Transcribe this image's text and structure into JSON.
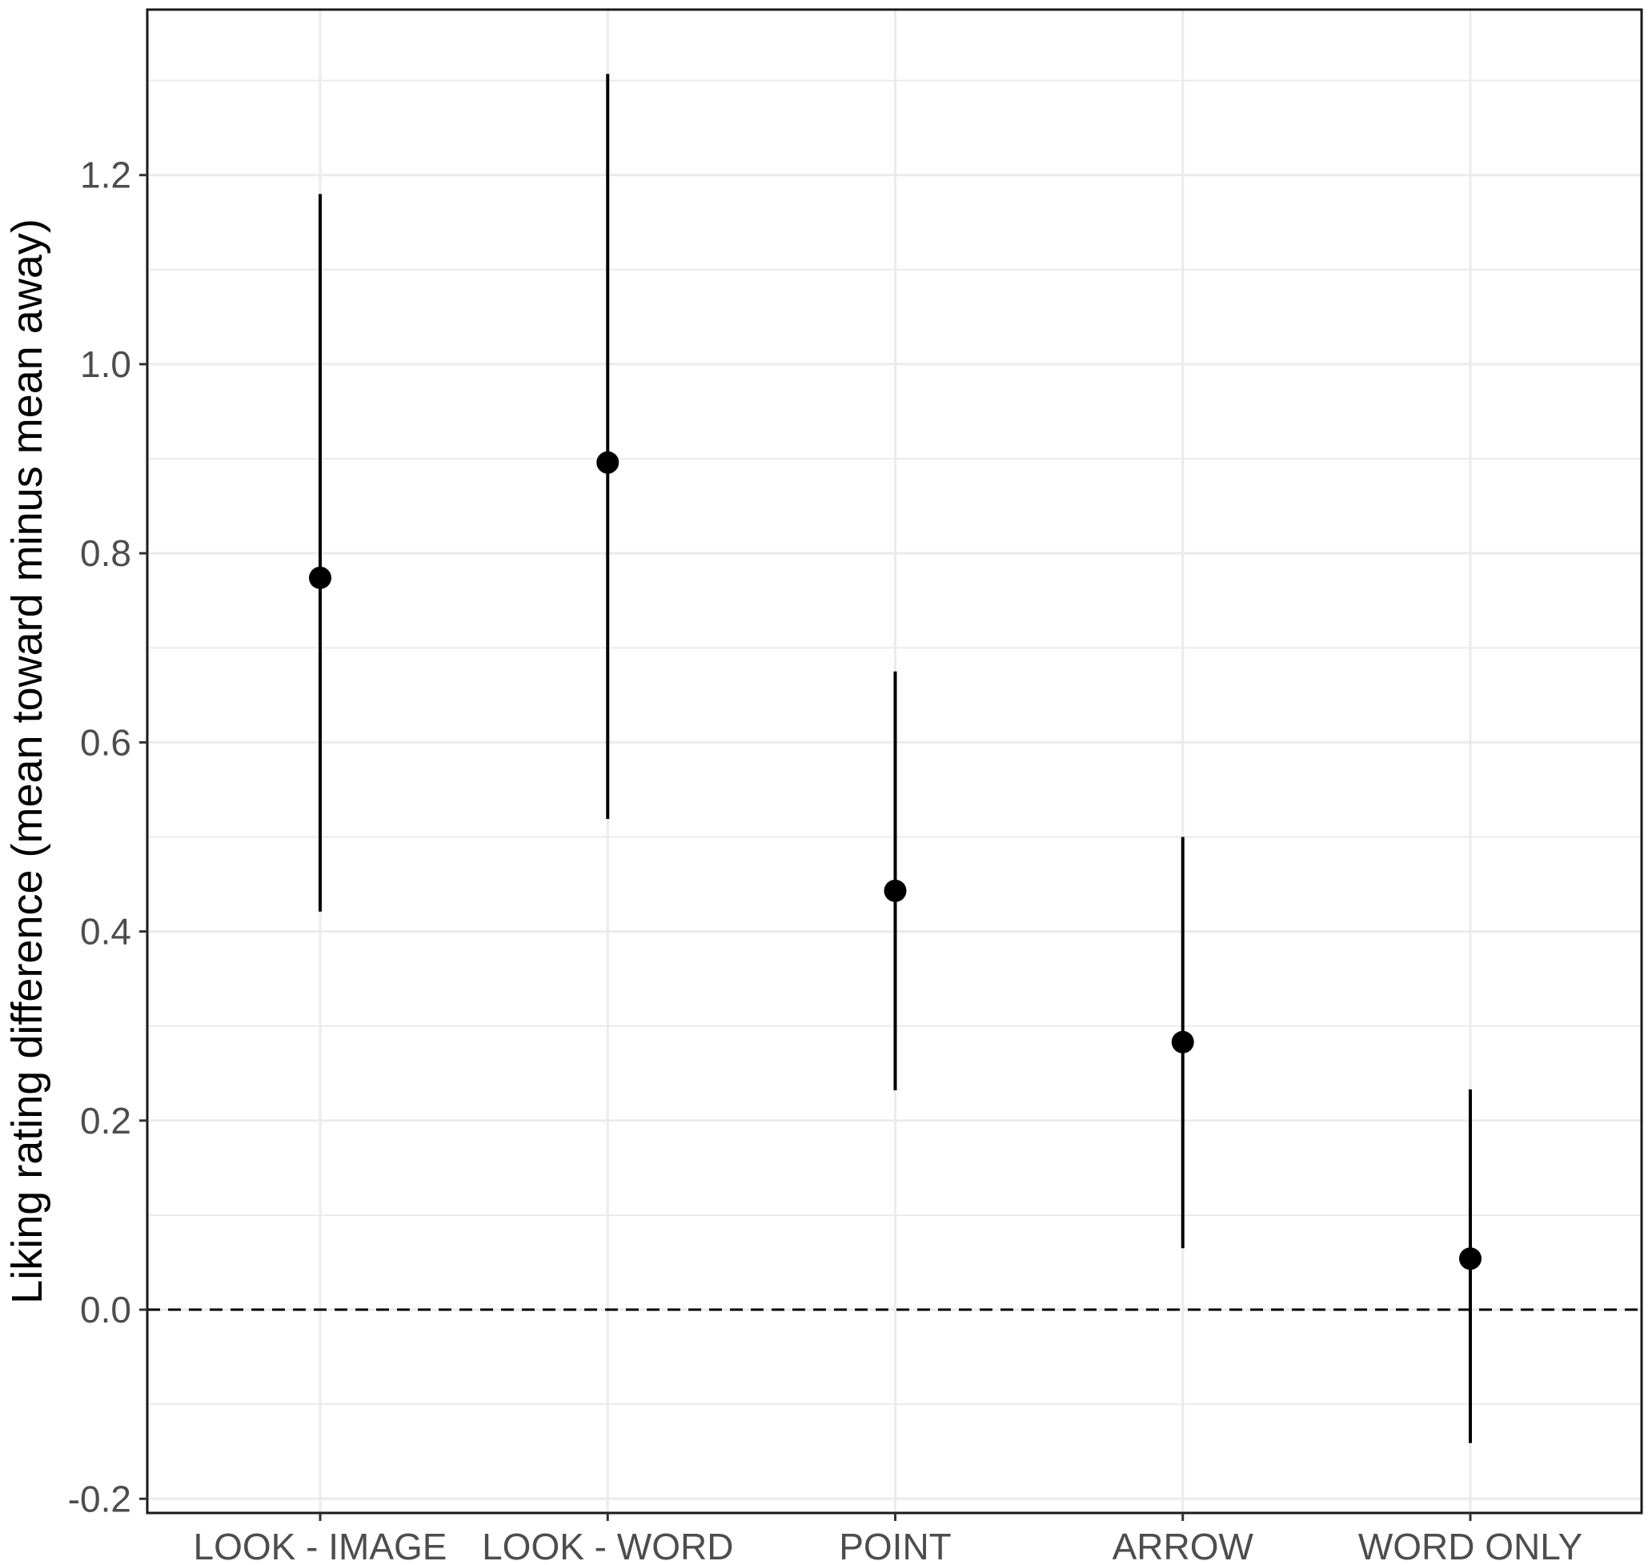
{
  "chart_data": {
    "type": "scatter",
    "subtype": "point-with-error-bars",
    "title": "",
    "xlabel": "",
    "ylabel": "Liking rating difference (mean toward minus mean away)",
    "categories": [
      "LOOK - IMAGE",
      "LOOK - WORD",
      "POINT",
      "ARROW",
      "WORD ONLY"
    ],
    "series": [
      {
        "values": [
          0.774,
          0.896,
          0.443,
          0.283,
          0.054
        ],
        "lower": [
          0.421,
          0.519,
          0.232,
          0.065,
          -0.141
        ],
        "upper": [
          1.18,
          1.307,
          0.675,
          0.5,
          0.233
        ]
      }
    ],
    "ylim": [
      -0.215,
      1.375
    ],
    "yticks": [
      "-0.2",
      "0.0",
      "0.2",
      "0.4",
      "0.6",
      "0.8",
      "1.0",
      "1.2"
    ],
    "reference_line": {
      "y": 0,
      "style": "dashed"
    },
    "grid": true,
    "legend": "none",
    "colors": {
      "points": "#000000",
      "grid": "#ebebeb",
      "frame": "#1a1a1a",
      "tick_text": "#4d4d4d"
    }
  }
}
